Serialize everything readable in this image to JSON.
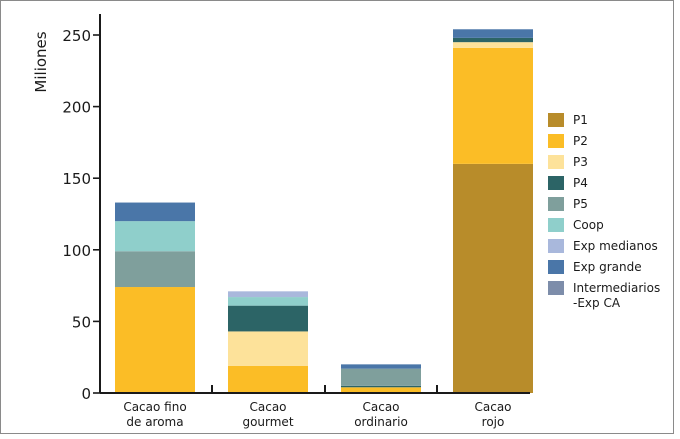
{
  "chart_data": {
    "type": "bar",
    "stacked": true,
    "ylabel": "Miliones",
    "xlabel": "",
    "ylim": [
      0,
      260
    ],
    "yticks": [
      0,
      50,
      100,
      150,
      200,
      250
    ],
    "categories": [
      "Cacao fino de aroma",
      "Cacao gourmet",
      "Cacao ordinario",
      "Cacao rojo"
    ],
    "category_lines": [
      [
        "Cacao fino",
        "de aroma"
      ],
      [
        "Cacao",
        "gourmet"
      ],
      [
        "Cacao",
        "ordinario"
      ],
      [
        "Cacao",
        "rojo"
      ]
    ],
    "grid": false,
    "legend_position": "right",
    "series": [
      {
        "name": "P1",
        "color": "#b88c2a",
        "values": [
          0,
          0,
          0,
          160
        ]
      },
      {
        "name": "P2",
        "color": "#fbbd26",
        "values": [
          74,
          19,
          4,
          81
        ]
      },
      {
        "name": "P3",
        "color": "#fde29a",
        "values": [
          0,
          24,
          0,
          4
        ]
      },
      {
        "name": "P4",
        "color": "#2c6466",
        "values": [
          0,
          18,
          1,
          3
        ]
      },
      {
        "name": "P5",
        "color": "#7f9f9c",
        "values": [
          25,
          0,
          12,
          0
        ]
      },
      {
        "name": "Coop",
        "color": "#8fcfcb",
        "values": [
          21,
          6,
          0,
          0
        ]
      },
      {
        "name": "Exp medianos",
        "color": "#a9b8dc",
        "values": [
          0,
          4,
          0,
          0
        ]
      },
      {
        "name": "Exp grande",
        "color": "#4a76a8",
        "values": [
          13,
          0,
          3,
          6
        ]
      },
      {
        "name": "Intermediarios -Exp CA",
        "color": "#7d8daa",
        "values": [
          0,
          0,
          0,
          0
        ]
      }
    ],
    "legend_lines": [
      [
        "P1"
      ],
      [
        "P2"
      ],
      [
        "P3"
      ],
      [
        "P4"
      ],
      [
        "P5"
      ],
      [
        "Coop"
      ],
      [
        "Exp medianos"
      ],
      [
        "Exp grande"
      ],
      [
        "Intermediarios",
        "-Exp CA"
      ]
    ]
  }
}
